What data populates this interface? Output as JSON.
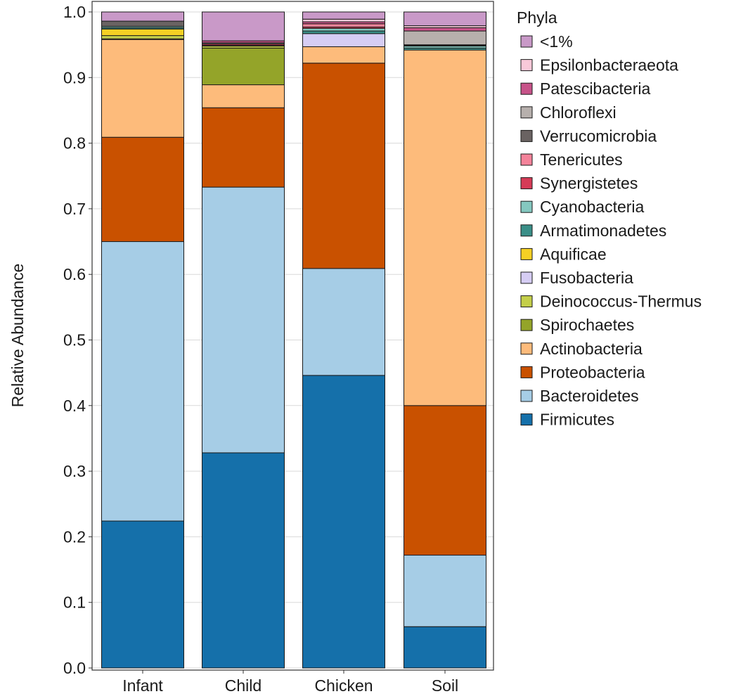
{
  "chart_data": {
    "type": "bar",
    "stacked": true,
    "title": "",
    "xlabel": "",
    "ylabel": "Relative Abundance",
    "ylim": [
      0,
      1.0
    ],
    "yticks": [
      "0.0",
      "0.1",
      "0.2",
      "0.3",
      "0.4",
      "0.5",
      "0.6",
      "0.7",
      "0.8",
      "0.9",
      "1.0"
    ],
    "grid": true,
    "legend_position": "right",
    "legend_title": "Phyla",
    "categories": [
      "Infant",
      "Child",
      "Chicken",
      "Soil"
    ],
    "series": [
      {
        "name": "Firmicutes",
        "color": "#1570aa",
        "values": [
          0.224,
          0.328,
          0.446,
          0.063
        ]
      },
      {
        "name": "Bacteroidetes",
        "color": "#a6cde6",
        "values": [
          0.426,
          0.405,
          0.163,
          0.109
        ]
      },
      {
        "name": "Proteobacteria",
        "color": "#c95100",
        "values": [
          0.159,
          0.121,
          0.313,
          0.228
        ]
      },
      {
        "name": "Actinobacteria",
        "color": "#fdbb7b",
        "values": [
          0.149,
          0.035,
          0.025,
          0.542
        ]
      },
      {
        "name": "Spirochaetes",
        "color": "#94a429",
        "values": [
          0.001,
          0.056,
          0.0,
          0.0
        ]
      },
      {
        "name": "Deinococcus-Thermus",
        "color": "#c4cf4a",
        "values": [
          0.005,
          0.003,
          0.0,
          0.0
        ]
      },
      {
        "name": "Fusobacteria",
        "color": "#d6cdf4",
        "values": [
          0.0,
          0.0,
          0.02,
          0.0
        ]
      },
      {
        "name": "Aquificae",
        "color": "#f5d024",
        "values": [
          0.01,
          0.0,
          0.0,
          0.0
        ]
      },
      {
        "name": "Armatimonadetes",
        "color": "#3a8f88",
        "values": [
          0.002,
          0.0,
          0.004,
          0.003
        ]
      },
      {
        "name": "Cyanobacteria",
        "color": "#85c8c0",
        "values": [
          0.002,
          0.001,
          0.004,
          0.003
        ]
      },
      {
        "name": "Synergistetes",
        "color": "#d63b57",
        "values": [
          0.0,
          0.002,
          0.002,
          0.0
        ]
      },
      {
        "name": "Tenericutes",
        "color": "#f4839a",
        "values": [
          0.0,
          0.0,
          0.005,
          0.001
        ]
      },
      {
        "name": "Verrucomicrobia",
        "color": "#6a6362",
        "values": [
          0.008,
          0.002,
          0.0,
          0.001
        ]
      },
      {
        "name": "Chloroflexi",
        "color": "#b7b0ad",
        "values": [
          0.0,
          0.0,
          0.0,
          0.021
        ]
      },
      {
        "name": "Patescibacteria",
        "color": "#c75389",
        "values": [
          0.0,
          0.003,
          0.003,
          0.005
        ]
      },
      {
        "name": "Epsilonbacteraeota",
        "color": "#f9c9d9",
        "values": [
          0.0,
          0.0,
          0.004,
          0.003
        ]
      },
      {
        "name": "<1%",
        "color": "#c999c8",
        "values": [
          0.014,
          0.044,
          0.011,
          0.021
        ]
      }
    ]
  }
}
